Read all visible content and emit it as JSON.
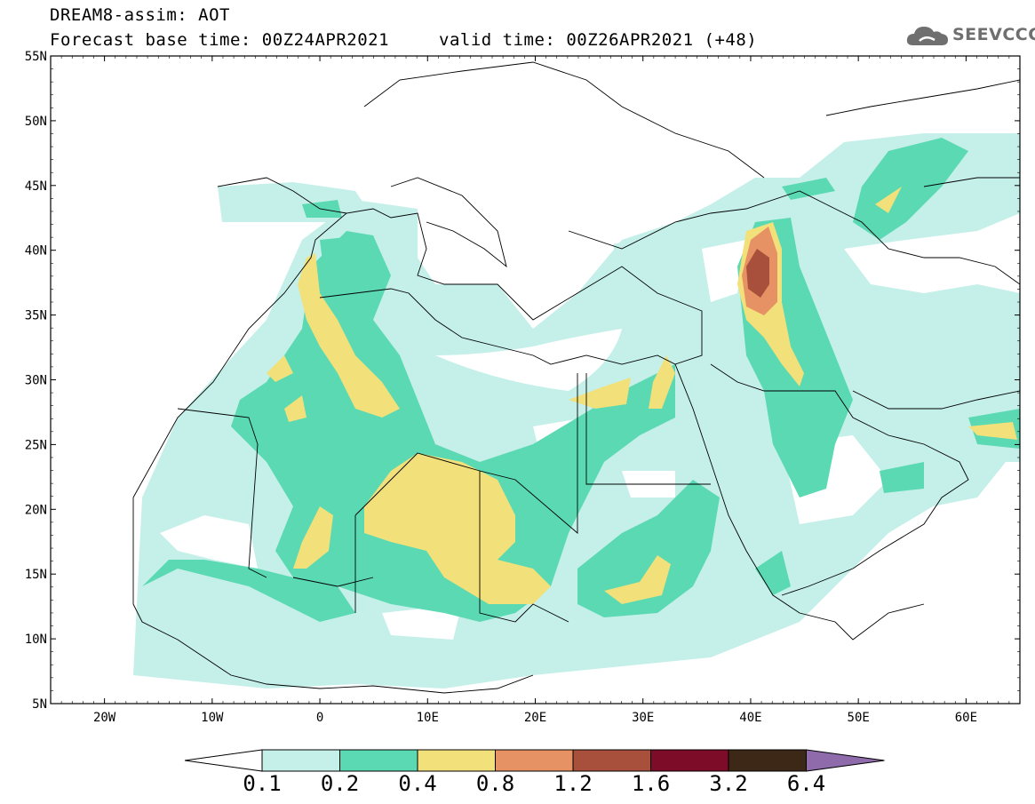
{
  "title": {
    "line1": "DREAM8-assim: AOT",
    "base_time": "Forecast base time: 00Z24APR2021",
    "valid_time": "valid time: 00Z26APR2021 (+48)"
  },
  "logo": {
    "text": "SEEVCCC",
    "icon": "cloud-icon"
  },
  "map": {
    "lon_range": [
      -25,
      65
    ],
    "lat_range": [
      5,
      55
    ],
    "lat_ticks": [
      "55N",
      "50N",
      "45N",
      "40N",
      "35N",
      "30N",
      "25N",
      "20N",
      "15N",
      "10N",
      "5N"
    ],
    "lon_ticks": [
      "20W",
      "10W",
      "0",
      "10E",
      "20E",
      "30E",
      "40E",
      "50E",
      "60E"
    ]
  },
  "colorbar": {
    "labels": [
      "0.1",
      "0.2",
      "0.4",
      "0.8",
      "1.2",
      "1.6",
      "3.2",
      "6.4"
    ],
    "colors": [
      "#c4f0e9",
      "#5ad9b2",
      "#f2e07a",
      "#e79264",
      "#a8503b",
      "#7d0c29",
      "#3d2716",
      "#8f6bab"
    ]
  }
}
